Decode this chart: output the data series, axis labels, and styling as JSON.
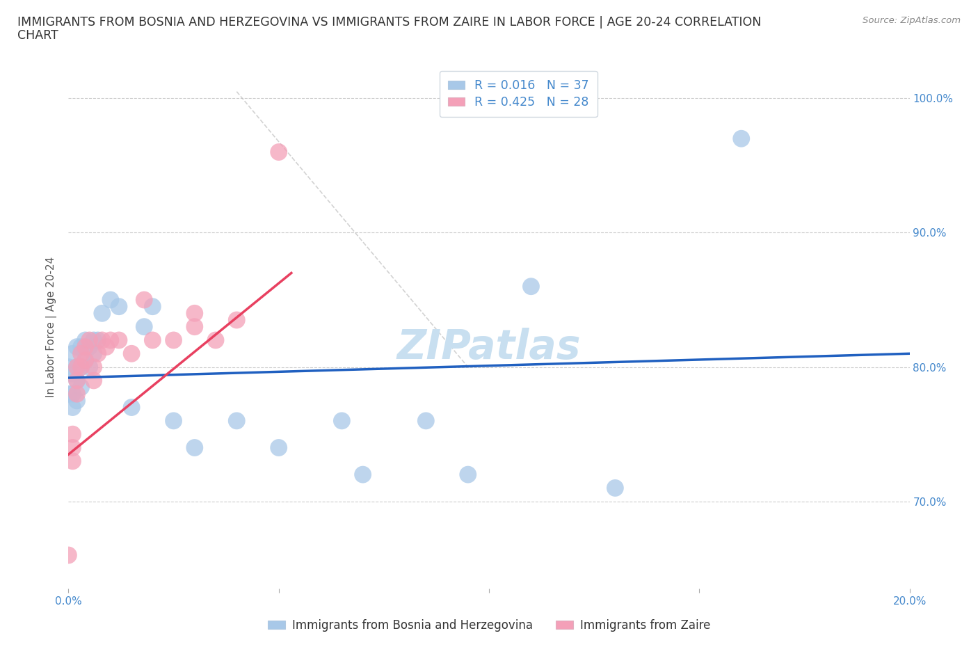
{
  "title_line1": "IMMIGRANTS FROM BOSNIA AND HERZEGOVINA VS IMMIGRANTS FROM ZAIRE IN LABOR FORCE | AGE 20-24 CORRELATION",
  "title_line2": "CHART",
  "source": "Source: ZipAtlas.com",
  "ylabel": "In Labor Force | Age 20-24",
  "xlim": [
    0.0,
    0.2
  ],
  "ylim": [
    0.635,
    1.025
  ],
  "x_ticks": [
    0.0,
    0.05,
    0.1,
    0.15,
    0.2
  ],
  "x_tick_labels": [
    "0.0%",
    "",
    "",
    "",
    "20.0%"
  ],
  "y_ticks": [
    0.7,
    0.8,
    0.9,
    1.0
  ],
  "y_tick_labels": [
    "70.0%",
    "80.0%",
    "90.0%",
    "100.0%"
  ],
  "legend_label1": "Immigrants from Bosnia and Herzegovina",
  "legend_label2": "Immigrants from Zaire",
  "color_blue": "#a8c8e8",
  "color_pink": "#f4a0b8",
  "color_blue_line": "#2060c0",
  "color_pink_line": "#e84060",
  "color_grid": "#cccccc",
  "color_dashed": "#c0c0c0",
  "watermark_text": "ZIPatlas",
  "watermark_color": "#c8dff0",
  "title_color": "#333333",
  "source_color": "#888888",
  "axis_label_color": "#555555",
  "tick_color": "#4488cc",
  "background_color": "#ffffff",
  "blue_x": [
    0.0,
    0.0,
    0.001,
    0.001,
    0.001,
    0.001,
    0.002,
    0.002,
    0.002,
    0.002,
    0.003,
    0.003,
    0.003,
    0.004,
    0.004,
    0.005,
    0.005,
    0.006,
    0.006,
    0.007,
    0.008,
    0.01,
    0.012,
    0.015,
    0.018,
    0.02,
    0.025,
    0.03,
    0.04,
    0.05,
    0.065,
    0.07,
    0.085,
    0.095,
    0.11,
    0.13,
    0.16
  ],
  "blue_y": [
    0.8,
    0.78,
    0.81,
    0.795,
    0.78,
    0.77,
    0.815,
    0.8,
    0.79,
    0.775,
    0.815,
    0.8,
    0.785,
    0.82,
    0.805,
    0.815,
    0.8,
    0.82,
    0.81,
    0.82,
    0.84,
    0.85,
    0.845,
    0.77,
    0.83,
    0.845,
    0.76,
    0.74,
    0.76,
    0.74,
    0.76,
    0.72,
    0.76,
    0.72,
    0.86,
    0.71,
    0.97
  ],
  "pink_x": [
    0.0,
    0.001,
    0.001,
    0.001,
    0.002,
    0.002,
    0.002,
    0.003,
    0.003,
    0.004,
    0.004,
    0.005,
    0.006,
    0.006,
    0.007,
    0.008,
    0.009,
    0.01,
    0.012,
    0.015,
    0.018,
    0.02,
    0.025,
    0.03,
    0.03,
    0.035,
    0.04,
    0.05
  ],
  "pink_y": [
    0.66,
    0.75,
    0.74,
    0.73,
    0.8,
    0.79,
    0.78,
    0.81,
    0.8,
    0.815,
    0.805,
    0.82,
    0.8,
    0.79,
    0.81,
    0.82,
    0.815,
    0.82,
    0.82,
    0.81,
    0.85,
    0.82,
    0.82,
    0.84,
    0.83,
    0.82,
    0.835,
    0.96
  ],
  "blue_regression": [
    0.0,
    0.2,
    0.792,
    0.81
  ],
  "pink_regression": [
    0.0,
    0.053,
    0.735,
    0.87
  ],
  "dashed_line": [
    0.04,
    0.095,
    1.005,
    0.8
  ]
}
